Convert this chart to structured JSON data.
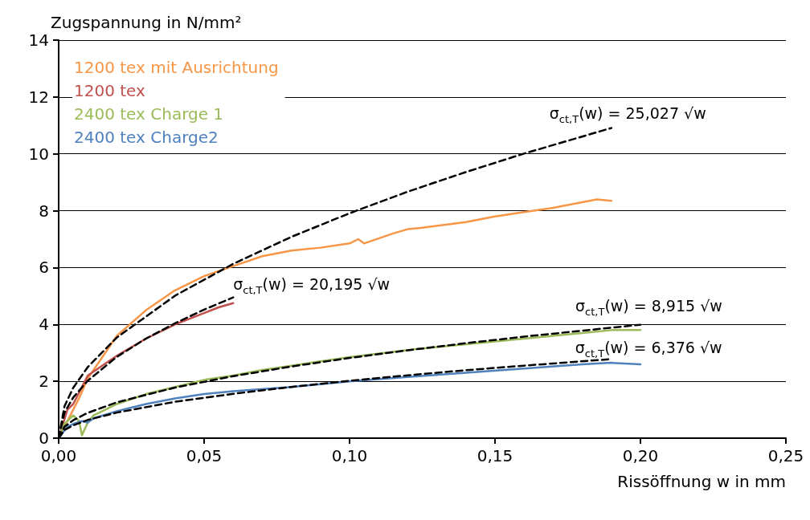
{
  "chart_data": {
    "type": "line",
    "xlabel": "Rissöffnung w in mm",
    "ylabel": "Zugspannung in N/mm²",
    "xlim": [
      0,
      0.25
    ],
    "xticks": [
      {
        "value": 0,
        "label": "0,00"
      },
      {
        "value": 0.05,
        "label": "0,05"
      },
      {
        "value": 0.1,
        "label": "0,10"
      },
      {
        "value": 0.15,
        "label": "0,15"
      },
      {
        "value": 0.2,
        "label": "0,20"
      },
      {
        "value": 0.25,
        "label": "0,25"
      }
    ],
    "ylim": [
      0,
      14
    ],
    "yticks": [
      0,
      2,
      4,
      6,
      8,
      10,
      12,
      14
    ],
    "grid": "y",
    "legend": "top left",
    "marker": "none",
    "series": [
      {
        "name": "1200 tex mit Ausrichtung",
        "color": "#f79646",
        "line_style": "solid",
        "x": [
          0,
          0.007,
          0.01,
          0.02,
          0.03,
          0.04,
          0.05,
          0.06,
          0.07,
          0.08,
          0.09,
          0.1,
          0.103,
          0.105,
          0.115,
          0.12,
          0.125,
          0.14,
          0.15,
          0.16,
          0.17,
          0.18,
          0.185,
          0.19
        ],
        "values": [
          0,
          1.4,
          2.1,
          3.6,
          4.5,
          5.2,
          5.7,
          6.05,
          6.4,
          6.6,
          6.7,
          6.85,
          7.0,
          6.85,
          7.2,
          7.35,
          7.4,
          7.6,
          7.8,
          7.95,
          8.1,
          8.3,
          8.4,
          8.35
        ]
      },
      {
        "name": "1200 tex",
        "color": "#c0504d",
        "line_style": "solid",
        "x": [
          0,
          0.003,
          0.005,
          0.01,
          0.02,
          0.03,
          0.04,
          0.05,
          0.055,
          0.06
        ],
        "values": [
          0,
          1.0,
          1.2,
          2.2,
          2.9,
          3.5,
          4.0,
          4.4,
          4.6,
          4.75
        ]
      },
      {
        "name": "2400 tex Charge 1",
        "color": "#9bbb59",
        "line_style": "solid",
        "x": [
          0,
          0.002,
          0.005,
          0.007,
          0.008,
          0.01,
          0.012,
          0.02,
          0.03,
          0.04,
          0.05,
          0.06,
          0.07,
          0.08,
          0.09,
          0.1,
          0.12,
          0.14,
          0.16,
          0.18,
          0.19,
          0.2
        ],
        "values": [
          0,
          0.5,
          0.8,
          0.6,
          0.1,
          0.55,
          0.8,
          1.2,
          1.55,
          1.8,
          2.05,
          2.2,
          2.4,
          2.55,
          2.7,
          2.85,
          3.1,
          3.3,
          3.5,
          3.7,
          3.8,
          3.8
        ]
      },
      {
        "name": "2400 tex Charge2",
        "color": "#4f81bd",
        "line_style": "solid",
        "x": [
          0,
          0.003,
          0.005,
          0.008,
          0.01,
          0.012,
          0.02,
          0.03,
          0.04,
          0.05,
          0.06,
          0.08,
          0.1,
          0.12,
          0.14,
          0.16,
          0.18,
          0.19,
          0.2
        ],
        "values": [
          0,
          0.4,
          0.5,
          0.6,
          0.55,
          0.7,
          0.95,
          1.2,
          1.4,
          1.55,
          1.65,
          1.8,
          2.0,
          2.15,
          2.3,
          2.45,
          2.6,
          2.65,
          2.6
        ]
      },
      {
        "color": "#000000",
        "line_style": "dashed",
        "x": [
          0,
          0.002,
          0.005,
          0.01,
          0.02,
          0.04,
          0.06,
          0.08,
          0.1,
          0.12,
          0.14,
          0.16,
          0.19
        ],
        "values": [
          0,
          1.12,
          1.77,
          2.5,
          3.54,
          5.01,
          6.13,
          7.08,
          7.91,
          8.67,
          9.36,
          10.01,
          10.91
        ]
      },
      {
        "color": "#000000",
        "line_style": "dashed",
        "x": [
          0,
          0.002,
          0.005,
          0.01,
          0.02,
          0.03,
          0.04,
          0.05,
          0.06
        ],
        "values": [
          0,
          0.9,
          1.43,
          2.02,
          2.86,
          3.5,
          4.04,
          4.52,
          4.95
        ]
      },
      {
        "color": "#000000",
        "line_style": "dashed",
        "x": [
          0,
          0.002,
          0.005,
          0.01,
          0.02,
          0.04,
          0.06,
          0.08,
          0.1,
          0.12,
          0.14,
          0.16,
          0.18,
          0.2
        ],
        "values": [
          0,
          0.4,
          0.63,
          0.89,
          1.26,
          1.78,
          2.18,
          2.52,
          2.82,
          3.09,
          3.34,
          3.57,
          3.78,
          3.99
        ]
      },
      {
        "color": "#000000",
        "line_style": "dashed",
        "x": [
          0,
          0.002,
          0.005,
          0.01,
          0.02,
          0.04,
          0.06,
          0.08,
          0.1,
          0.12,
          0.14,
          0.16,
          0.19
        ],
        "values": [
          0,
          0.29,
          0.45,
          0.64,
          0.9,
          1.28,
          1.56,
          1.8,
          2.02,
          2.21,
          2.39,
          2.55,
          2.78
        ]
      }
    ],
    "annotations": [
      "σ$_{ct,T}$(w) = 25,027 √w",
      "σ$_{ct,T}$(w) = 20,195 √w",
      "σ$_{ct,T}$(w) = 8,915 √w",
      "σ$_{ct,T}$(w) = 6,376 √w"
    ]
  }
}
